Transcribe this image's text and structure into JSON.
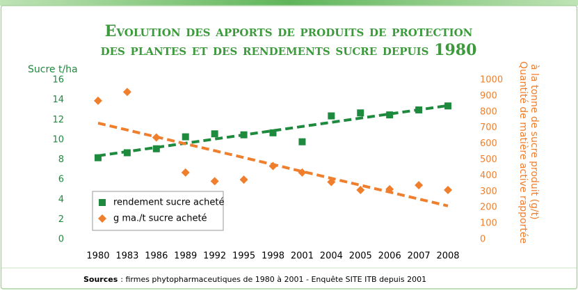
{
  "chart_data": {
    "type": "scatter",
    "title": [
      "Evolution des apports de produits de protection",
      "des plantes et des rendements sucre depuis 1980"
    ],
    "ylabel": "Sucre t/ha",
    "y2label": [
      "Quantité de matière active rapportée",
      "à la tonne de sucre produit (g/t)"
    ],
    "categories": [
      "1980",
      "1983",
      "1986",
      "1989",
      "1992",
      "1995",
      "1998",
      "2001",
      "2004",
      "2005",
      "2006",
      "2007",
      "2008"
    ],
    "series": [
      {
        "name": "rendement sucre acheté",
        "color": "#1e8a3e",
        "marker": "square",
        "trendline": true,
        "values": [
          8.2,
          8.7,
          9.1,
          10.3,
          10.6,
          10.5,
          10.7,
          9.8,
          12.4,
          12.7,
          12.5,
          13.0,
          13.4
        ]
      },
      {
        "name": "g ma./t sucre acheté",
        "color": "#f07f2d",
        "marker": "diamond",
        "trendline": true,
        "axis": "y2",
        "values": [
          870,
          925,
          640,
          420,
          365,
          375,
          460,
          420,
          360,
          310,
          315,
          340,
          310
        ]
      }
    ],
    "ylim": [
      0,
      16
    ],
    "yticks": [
      0,
      2,
      4,
      6,
      8,
      10,
      12,
      14,
      16
    ],
    "y2lim": [
      0,
      1000
    ],
    "y2ticks": [
      0,
      100,
      200,
      300,
      400,
      500,
      600,
      700,
      800,
      900,
      1000
    ],
    "legend": "lower-left",
    "source": {
      "label": "Sources",
      "text": ": firmes phytopharmaceutiques de 1980 à 2001 - Enquête SITE ITB depuis 2001"
    }
  }
}
